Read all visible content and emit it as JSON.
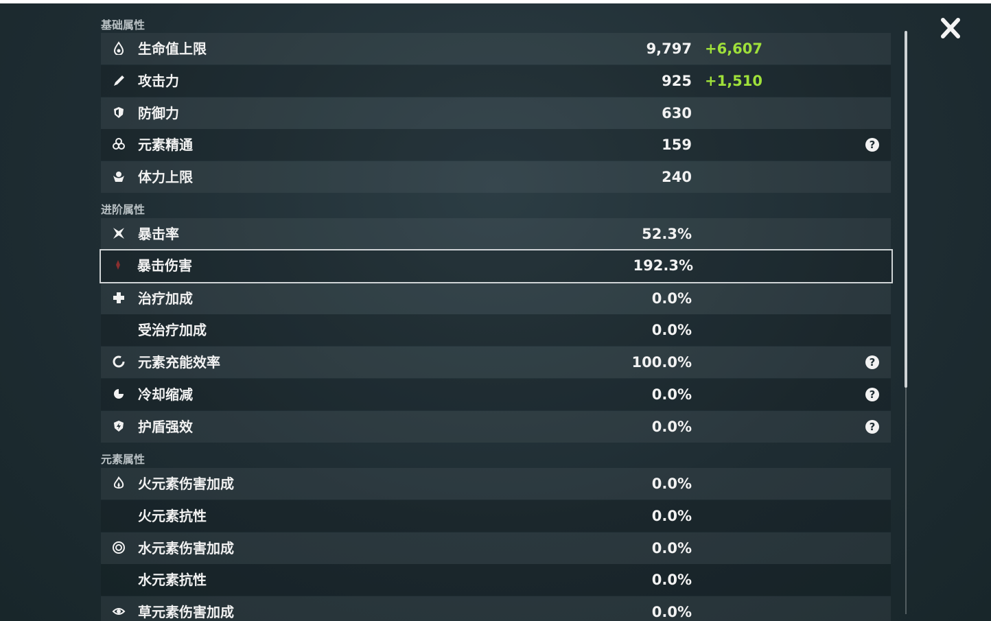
{
  "sections": [
    {
      "title": "基础属性",
      "rows": [
        {
          "label": "生命值上限",
          "value": "9,797",
          "bonus": "+6,607"
        },
        {
          "label": "攻击力",
          "value": "925",
          "bonus": "+1,510"
        },
        {
          "label": "防御力",
          "value": "630"
        },
        {
          "label": "元素精通",
          "value": "159",
          "help": "?"
        },
        {
          "label": "体力上限",
          "value": "240"
        }
      ]
    },
    {
      "title": "进阶属性",
      "rows": [
        {
          "label": "暴击率",
          "value": "52.3%"
        },
        {
          "label": "暴击伤害",
          "value": "192.3%"
        },
        {
          "label": "治疗加成",
          "value": "0.0%"
        },
        {
          "label": "受治疗加成",
          "value": "0.0%"
        },
        {
          "label": "元素充能效率",
          "value": "100.0%",
          "help": "?"
        },
        {
          "label": "冷却缩减",
          "value": "0.0%",
          "help": "?"
        },
        {
          "label": "护盾强效",
          "value": "0.0%",
          "help": "?"
        }
      ]
    },
    {
      "title": "元素属性",
      "rows": [
        {
          "label": "火元素伤害加成",
          "value": "0.0%"
        },
        {
          "label": "火元素抗性",
          "value": "0.0%"
        },
        {
          "label": "水元素伤害加成",
          "value": "0.0%"
        },
        {
          "label": "水元素抗性",
          "value": "0.0%"
        },
        {
          "label": "草元素伤害加成",
          "value": "0.0%"
        }
      ]
    }
  ]
}
